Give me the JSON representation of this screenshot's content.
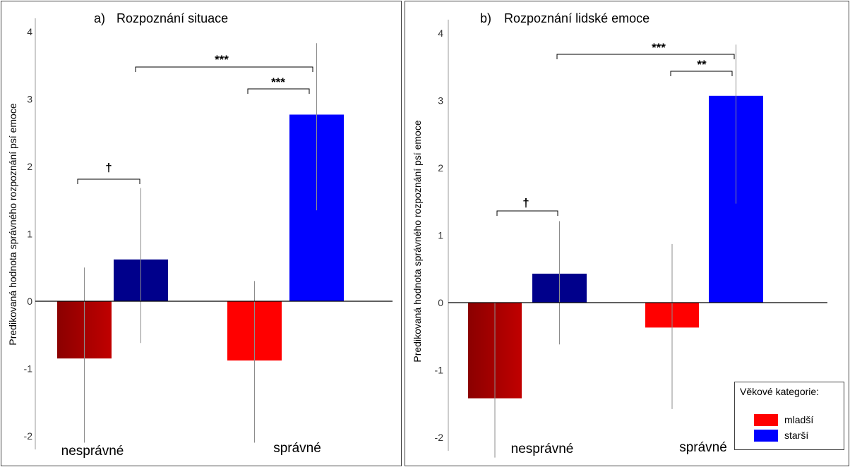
{
  "chart_data": [
    {
      "type": "bar",
      "title": "Rozpoznání situace",
      "panel_label": "a)",
      "ylabel": "Predikovaná hodnota správného rozpoznání psí emoce",
      "ylim": [
        -2.2,
        4.2
      ],
      "yticks": [
        -2,
        -1,
        0,
        1,
        2,
        3,
        4
      ],
      "categories": [
        "nesprávné",
        "správné"
      ],
      "series": [
        {
          "name": "mladší",
          "values": [
            -0.85,
            -0.88
          ],
          "error_low": [
            -2.1,
            -2.1
          ],
          "error_high": [
            0.5,
            0.3
          ]
        },
        {
          "name": "starší",
          "values": [
            0.62,
            2.77
          ],
          "error_low": [
            -0.62,
            1.35
          ],
          "error_high": [
            1.68,
            3.83
          ]
        }
      ],
      "annotations": [
        {
          "label": "†",
          "between": "nesprávné: mladší – starší"
        },
        {
          "label": "***",
          "between": "správné: mladší – starší"
        },
        {
          "label": "***",
          "between": "nesprávné starší – správné starší"
        }
      ]
    },
    {
      "type": "bar",
      "title": "Rozpoznání lidské emoce",
      "panel_label": "b)",
      "ylabel": "Predikovaná hodnota správného rozpoznání psí emoce",
      "ylim": [
        -2.2,
        4.2
      ],
      "yticks": [
        -2,
        -1,
        0,
        1,
        2,
        3,
        4
      ],
      "categories": [
        "nesprávné",
        "správné"
      ],
      "series": [
        {
          "name": "mladší",
          "values": [
            -1.42,
            -0.37
          ],
          "error_low": [
            -2.3,
            -1.58
          ],
          "error_high": [
            0.0,
            0.87
          ]
        },
        {
          "name": "starší",
          "values": [
            0.43,
            3.07
          ],
          "error_low": [
            -0.62,
            1.47
          ],
          "error_high": [
            1.21,
            3.83
          ]
        }
      ],
      "annotations": [
        {
          "label": "†",
          "between": "nesprávné: mladší – starší"
        },
        {
          "label": "**",
          "between": "správné: mladší – starší"
        },
        {
          "label": "***",
          "between": "nesprávné starší – správné starší"
        }
      ]
    }
  ],
  "legend": {
    "title": "Věkové kategorie:",
    "items": [
      {
        "label": "mladší",
        "color": "#ff0000"
      },
      {
        "label": "starší",
        "color": "#0000ff"
      }
    ]
  },
  "colors": {
    "young_incorrect": "#c00000",
    "old_incorrect": "#00008b",
    "young_correct": "#ff0000",
    "old_correct": "#0000ff"
  }
}
